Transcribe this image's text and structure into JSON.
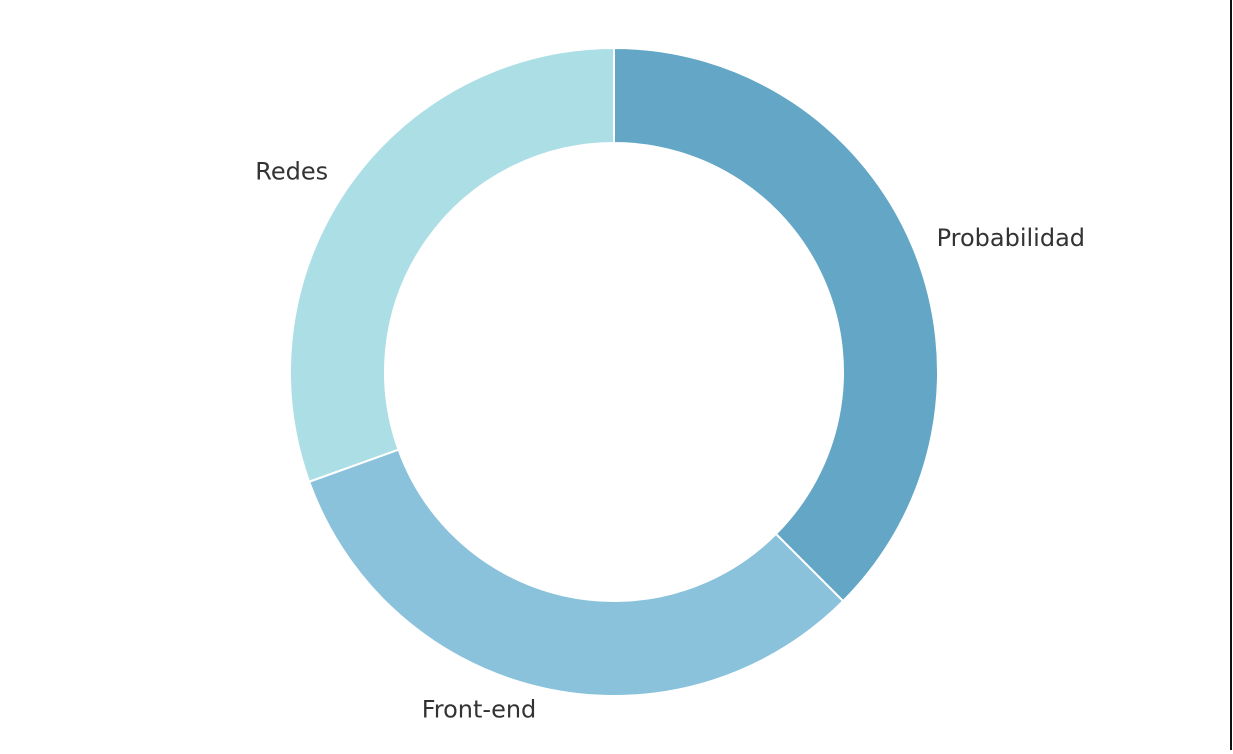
{
  "chart_data": {
    "type": "pie",
    "donut": true,
    "start": "top",
    "direction": "clockwise",
    "categories": [
      "Probabilidad",
      "Front-end",
      "Redes"
    ],
    "values": [
      37.5,
      32.0,
      30.5
    ],
    "colors": [
      "#63a6c5",
      "#8ac2db",
      "#acdee5"
    ],
    "slice_border_color": "#ffffff",
    "legend": "none",
    "title": ""
  }
}
